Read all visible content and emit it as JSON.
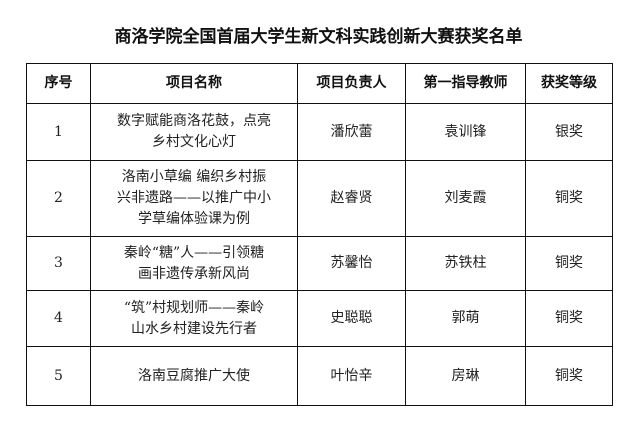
{
  "title": "商洛学院全国首届大学生新文科实践创新大赛获奖名单",
  "headers": [
    "序号",
    "项目名称",
    "项目负责人",
    "第一指导教师",
    "获奖等级"
  ],
  "rows": [
    {
      "no": "1",
      "project": [
        "数字赋能商洛花鼓，点亮",
        "乡村文化心灯"
      ],
      "leader": "潘欣蕾",
      "advisor": "袁训锋",
      "award": "银奖"
    },
    {
      "no": "2",
      "project": [
        "洛南小草编 编织乡村振",
        "兴非遗路——以推广中小",
        "学草编体验课为例"
      ],
      "leader": "赵睿贤",
      "advisor": "刘麦霞",
      "award": "铜奖"
    },
    {
      "no": "3",
      "project": [
        "秦岭“糖”人——引领糖",
        "画非遗传承新风尚"
      ],
      "leader": "苏馨怡",
      "advisor": "苏铁柱",
      "award": "铜奖"
    },
    {
      "no": "4",
      "project": [
        "“筑”村规划师——秦岭",
        "山水乡村建设先行者"
      ],
      "leader": "史聪聪",
      "advisor": "郭萌",
      "award": "铜奖"
    },
    {
      "no": "5",
      "project": [
        "洛南豆腐推广大使"
      ],
      "leader": "叶怡辛",
      "advisor": "房琳",
      "award": "铜奖"
    }
  ]
}
